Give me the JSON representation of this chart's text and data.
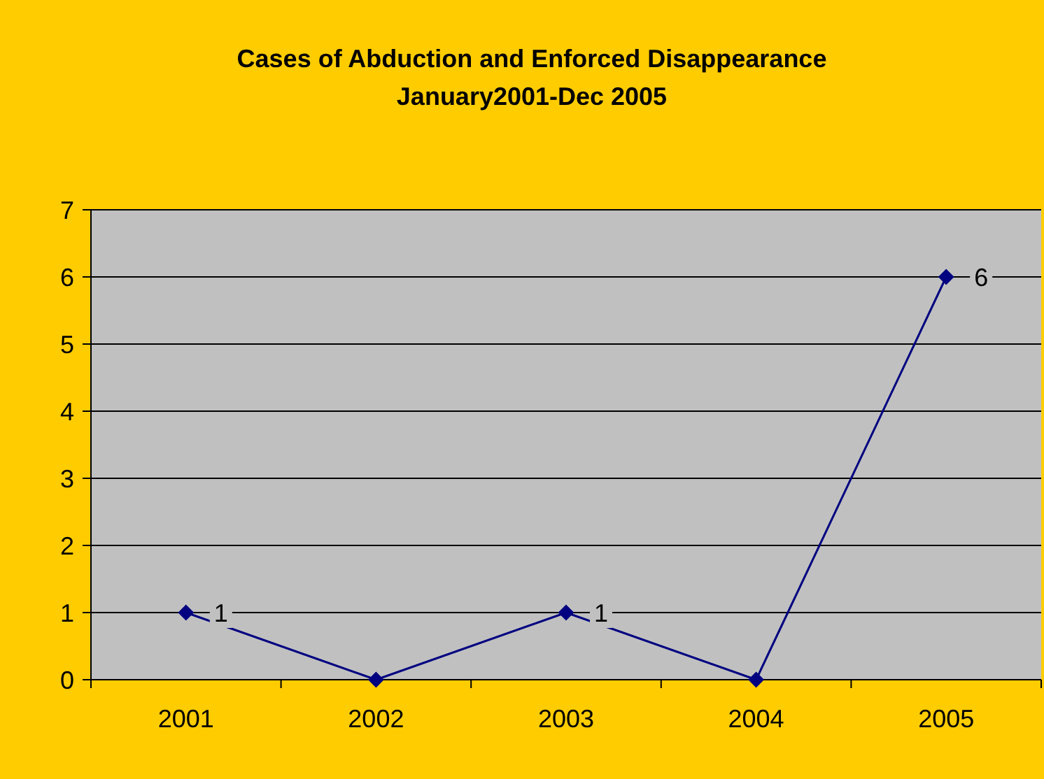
{
  "chart_data": {
    "type": "line",
    "title": "Cases of Abduction and Enforced Disappearance\nJanuary2001-Dec 2005",
    "categories": [
      "2001",
      "2002",
      "2003",
      "2004",
      "2005"
    ],
    "series": [
      {
        "color": "#000080",
        "values": [
          1,
          0,
          1,
          0,
          6
        ],
        "value_labels": [
          "1",
          null,
          "1",
          null,
          "6"
        ]
      }
    ],
    "ylim": [
      0,
      7
    ],
    "yticks": [
      0,
      1,
      2,
      3,
      4,
      5,
      6,
      7
    ],
    "grid": "y",
    "marker": "diamond",
    "line_style": "solid"
  }
}
